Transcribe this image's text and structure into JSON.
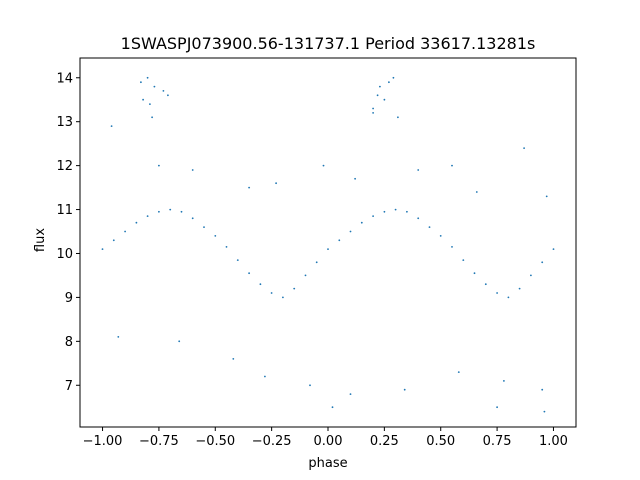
{
  "chart_data": {
    "type": "scatter",
    "title": "1SWASPJ073900.56-131737.1 Period 33617.13281s",
    "xlabel": "phase",
    "ylabel": "flux",
    "xlim": [
      -1.1,
      1.1
    ],
    "ylim": [
      6.05,
      14.45
    ],
    "xticks": [
      -1.0,
      -0.75,
      -0.5,
      -0.25,
      0.0,
      0.25,
      0.5,
      0.75,
      1.0
    ],
    "xtick_labels": [
      "−1.00",
      "−0.75",
      "−0.50",
      "−0.25",
      "0.00",
      "0.25",
      "0.50",
      "0.75",
      "1.00"
    ],
    "yticks": [
      7,
      8,
      9,
      10,
      11,
      12,
      13,
      14
    ],
    "ytick_labels": [
      "7",
      "8",
      "9",
      "10",
      "11",
      "12",
      "13",
      "14"
    ],
    "grid": false,
    "legend": "none",
    "marker_color": "#1f77b4",
    "series": [
      {
        "x": [
          -1.0,
          -0.95,
          -0.9,
          -0.85,
          -0.8,
          -0.75,
          -0.7,
          -0.65,
          -0.6,
          -0.55,
          -0.5,
          -0.45,
          -0.4,
          -0.35,
          -0.3,
          -0.25,
          -0.2,
          -0.15,
          -0.1,
          -0.05,
          0.0,
          0.05,
          0.1,
          0.15,
          0.2,
          0.25,
          0.3,
          0.35,
          0.4,
          0.45,
          0.5,
          0.55,
          0.6,
          0.65,
          0.7,
          0.75,
          0.8,
          0.85,
          0.9,
          0.95,
          1.0
        ],
        "y": [
          10.1,
          10.3,
          10.5,
          10.7,
          10.85,
          10.95,
          11.0,
          10.95,
          10.8,
          10.6,
          10.4,
          10.15,
          9.85,
          9.55,
          9.3,
          9.1,
          9.0,
          9.2,
          9.5,
          9.8,
          10.1,
          10.3,
          10.5,
          10.7,
          10.85,
          10.95,
          11.0,
          10.95,
          10.8,
          10.6,
          10.4,
          10.15,
          9.85,
          9.55,
          9.3,
          9.1,
          9.0,
          9.2,
          9.5,
          9.8,
          10.1
        ]
      },
      {
        "x": [
          -0.83,
          -0.82,
          -0.79,
          -0.78,
          -0.77,
          -0.73,
          -0.8,
          -0.71,
          0.2,
          0.22,
          0.23,
          0.25,
          0.27,
          0.29,
          0.31,
          0.2,
          -0.96,
          -0.75,
          -0.6,
          -0.35,
          -0.23,
          -0.02,
          0.12,
          0.4,
          0.55,
          0.66,
          0.87,
          0.97,
          -0.93,
          -0.66,
          -0.28,
          -0.08,
          0.02,
          0.34,
          0.78,
          0.96,
          0.75,
          0.95,
          0.1,
          0.58,
          -0.42
        ],
        "y": [
          13.9,
          13.5,
          13.4,
          13.1,
          13.8,
          13.7,
          14.0,
          13.6,
          13.3,
          13.6,
          13.8,
          13.5,
          13.9,
          14.0,
          13.1,
          13.2,
          12.9,
          12.0,
          11.9,
          11.5,
          11.6,
          12.0,
          11.7,
          11.9,
          12.0,
          11.4,
          12.4,
          11.3,
          8.1,
          8.0,
          7.2,
          7.0,
          6.5,
          6.9,
          7.1,
          6.4,
          6.5,
          6.9,
          6.8,
          7.3,
          7.6
        ]
      }
    ]
  }
}
